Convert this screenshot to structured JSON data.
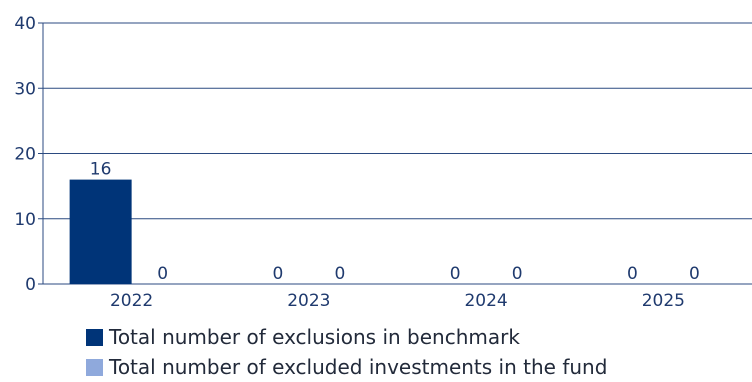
{
  "chart_data": {
    "type": "bar",
    "categories": [
      "2022",
      "2023",
      "2024",
      "2025"
    ],
    "series": [
      {
        "name": "Total number of exclusions in benchmark",
        "values": [
          16,
          0,
          0,
          0
        ],
        "color": "#003478"
      },
      {
        "name": "Total number of excluded investments in the fund",
        "values": [
          0,
          0,
          0,
          0
        ],
        "color": "#8fa9dc"
      }
    ],
    "ylim": [
      0,
      40
    ],
    "yticks": [
      0,
      10,
      20,
      30,
      40
    ],
    "grid": true,
    "legend_position": "bottom-left",
    "gridline_color": "#2b4a80",
    "text_color": "#1f3a6e"
  }
}
